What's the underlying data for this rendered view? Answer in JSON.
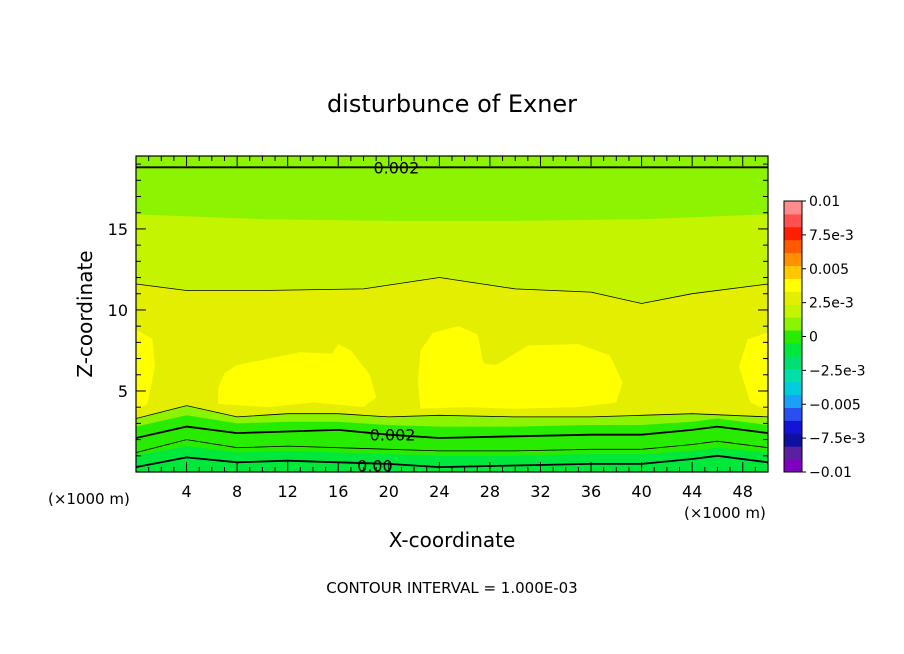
{
  "chart_data": {
    "type": "contour",
    "title": "disturbunce of Exner",
    "xlabel": "X-coordinate",
    "ylabel": "Z-coordinate",
    "x_unit_left": "(×1000 m)",
    "x_unit_right": "(×1000 m)",
    "footer": "CONTOUR INTERVAL = 1.000E-03",
    "xlim": [
      0,
      50
    ],
    "ylim": [
      0,
      19.5
    ],
    "xticks": [
      4,
      8,
      12,
      16,
      20,
      24,
      28,
      32,
      36,
      40,
      44,
      48
    ],
    "yticks": [
      5,
      10,
      15
    ],
    "colorbar": {
      "range": [
        -0.01,
        0.01
      ],
      "labels": [
        {
          "value": 0.01,
          "text": "0.01"
        },
        {
          "value": 0.0075,
          "text": "7.5e-3"
        },
        {
          "value": 0.005,
          "text": "0.005"
        },
        {
          "value": 0.0025,
          "text": "2.5e-3"
        },
        {
          "value": 0,
          "text": "0"
        },
        {
          "value": -0.0025,
          "text": "−2.5e-3"
        },
        {
          "value": -0.005,
          "text": "−0.005"
        },
        {
          "value": -0.0075,
          "text": "−7.5e-3"
        },
        {
          "value": -0.01,
          "text": "−0.01"
        }
      ],
      "colors": [
        "#8000c0",
        "#5a20a0",
        "#1010a0",
        "#1414d8",
        "#2a4ef0",
        "#1aa0f8",
        "#00ccdc",
        "#00e0a8",
        "#00e070",
        "#00e83c",
        "#28ec00",
        "#8cf400",
        "#c4f400",
        "#e4ee00",
        "#ffff00",
        "#ffc800",
        "#ff9000",
        "#ff5a00",
        "#ff1e00",
        "#ff5050",
        "#ff8c8c"
      ]
    },
    "contour_labels": [
      {
        "x": 20.6,
        "y": 18.8,
        "text": "0.002"
      },
      {
        "x": 20.3,
        "y": 2.3,
        "text": "0.002"
      },
      {
        "x": 18.9,
        "y": 0.4,
        "text": "0.00"
      }
    ],
    "contour_lines": [
      {
        "weight": "thick",
        "points": [
          [
            0,
            18.8
          ],
          [
            10,
            18.8
          ],
          [
            20,
            18.8
          ],
          [
            30,
            18.8
          ],
          [
            40,
            18.8
          ],
          [
            50,
            18.8
          ]
        ]
      },
      {
        "weight": "thin",
        "points": [
          [
            0,
            11.6
          ],
          [
            4,
            11.2
          ],
          [
            10,
            11.2
          ],
          [
            18,
            11.3
          ],
          [
            24,
            12.0
          ],
          [
            30,
            11.3
          ],
          [
            36,
            11.1
          ],
          [
            40,
            10.4
          ],
          [
            44,
            11.0
          ],
          [
            50,
            11.6
          ]
        ]
      },
      {
        "weight": "thin",
        "points": [
          [
            0,
            3.3
          ],
          [
            4,
            4.1
          ],
          [
            8,
            3.4
          ],
          [
            12,
            3.6
          ],
          [
            16,
            3.6
          ],
          [
            20,
            3.4
          ],
          [
            24,
            3.5
          ],
          [
            30,
            3.4
          ],
          [
            36,
            3.4
          ],
          [
            40,
            3.5
          ],
          [
            44,
            3.6
          ],
          [
            50,
            3.4
          ]
        ]
      },
      {
        "weight": "thick",
        "points": [
          [
            0,
            2.1
          ],
          [
            4,
            2.8
          ],
          [
            8,
            2.4
          ],
          [
            12,
            2.5
          ],
          [
            16,
            2.6
          ],
          [
            20,
            2.3
          ],
          [
            24,
            2.1
          ],
          [
            30,
            2.2
          ],
          [
            36,
            2.3
          ],
          [
            40,
            2.3
          ],
          [
            44,
            2.6
          ],
          [
            46,
            2.8
          ],
          [
            50,
            2.4
          ]
        ]
      },
      {
        "weight": "thin",
        "points": [
          [
            0,
            1.2
          ],
          [
            4,
            2.0
          ],
          [
            8,
            1.5
          ],
          [
            12,
            1.6
          ],
          [
            16,
            1.5
          ],
          [
            20,
            1.4
          ],
          [
            24,
            1.3
          ],
          [
            30,
            1.3
          ],
          [
            36,
            1.4
          ],
          [
            40,
            1.4
          ],
          [
            44,
            1.7
          ],
          [
            46,
            1.9
          ],
          [
            50,
            1.5
          ]
        ]
      },
      {
        "weight": "thick",
        "points": [
          [
            0,
            0.3
          ],
          [
            4,
            0.9
          ],
          [
            8,
            0.6
          ],
          [
            12,
            0.7
          ],
          [
            16,
            0.6
          ],
          [
            20,
            0.5
          ],
          [
            24,
            0.3
          ],
          [
            30,
            0.4
          ],
          [
            36,
            0.5
          ],
          [
            40,
            0.5
          ],
          [
            44,
            0.8
          ],
          [
            46,
            1.0
          ],
          [
            50,
            0.6
          ]
        ]
      }
    ],
    "fill_bands": [
      {
        "color": "#00e83c",
        "top": [
          [
            0,
            1.0
          ],
          [
            4,
            1.6
          ],
          [
            8,
            1.2
          ],
          [
            12,
            1.3
          ],
          [
            16,
            1.2
          ],
          [
            20,
            1.1
          ],
          [
            24,
            1.0
          ],
          [
            30,
            1.0
          ],
          [
            36,
            1.1
          ],
          [
            40,
            1.1
          ],
          [
            44,
            1.3
          ],
          [
            46,
            1.5
          ],
          [
            50,
            1.2
          ]
        ]
      },
      {
        "color": "#28ec00",
        "top": [
          [
            0,
            2.8
          ],
          [
            4,
            3.5
          ],
          [
            8,
            3.0
          ],
          [
            12,
            3.1
          ],
          [
            16,
            3.1
          ],
          [
            20,
            2.9
          ],
          [
            24,
            2.8
          ],
          [
            30,
            2.8
          ],
          [
            36,
            2.9
          ],
          [
            40,
            2.9
          ],
          [
            44,
            3.1
          ],
          [
            46,
            3.3
          ],
          [
            50,
            2.9
          ]
        ]
      },
      {
        "color": "#8cf400",
        "top": [
          [
            0,
            3.3
          ],
          [
            4,
            4.1
          ],
          [
            8,
            3.4
          ],
          [
            12,
            3.6
          ],
          [
            16,
            3.6
          ],
          [
            20,
            3.4
          ],
          [
            24,
            3.5
          ],
          [
            30,
            3.4
          ],
          [
            36,
            3.4
          ],
          [
            40,
            3.5
          ],
          [
            44,
            3.6
          ],
          [
            50,
            3.4
          ]
        ]
      },
      {
        "color": "#e4ee00",
        "top": [
          [
            0,
            11.6
          ],
          [
            4,
            11.2
          ],
          [
            10,
            11.2
          ],
          [
            18,
            11.3
          ],
          [
            24,
            12.0
          ],
          [
            30,
            11.3
          ],
          [
            36,
            11.1
          ],
          [
            40,
            10.4
          ],
          [
            44,
            11.0
          ],
          [
            50,
            11.6
          ]
        ]
      },
      {
        "color": "#c4f400",
        "top": [
          [
            0,
            15.9
          ],
          [
            10,
            15.6
          ],
          [
            20,
            15.5
          ],
          [
            30,
            15.5
          ],
          [
            40,
            15.6
          ],
          [
            50,
            15.9
          ]
        ]
      },
      {
        "color": "#8cf400",
        "top": [
          [
            0,
            19.5
          ],
          [
            50,
            19.5
          ]
        ]
      }
    ],
    "high_regions": [
      {
        "color": "#ffff00",
        "points": [
          [
            0,
            3.8
          ],
          [
            0.9,
            4.2
          ],
          [
            1.5,
            6.5
          ],
          [
            1.3,
            8.2
          ],
          [
            0,
            8.8
          ]
        ]
      },
      {
        "color": "#ffff00",
        "points": [
          [
            6.5,
            4.2
          ],
          [
            10.5,
            4.0
          ],
          [
            14,
            4.3
          ],
          [
            18,
            4.0
          ],
          [
            19,
            4.6
          ],
          [
            18.5,
            6.0
          ],
          [
            17,
            7.5
          ],
          [
            16,
            7.9
          ],
          [
            15.5,
            7.3
          ],
          [
            13,
            7.4
          ],
          [
            10.5,
            7.0
          ],
          [
            8,
            6.6
          ],
          [
            7,
            6.1
          ],
          [
            6.5,
            5.2
          ]
        ]
      },
      {
        "color": "#ffff00",
        "points": [
          [
            22.5,
            3.9
          ],
          [
            26,
            4.0
          ],
          [
            30,
            3.9
          ],
          [
            35,
            4.0
          ],
          [
            38,
            4.3
          ],
          [
            38.5,
            5.5
          ],
          [
            37.5,
            7.2
          ],
          [
            35,
            7.9
          ],
          [
            31,
            7.8
          ],
          [
            28.5,
            6.6
          ],
          [
            27.5,
            6.7
          ],
          [
            27,
            8.5
          ],
          [
            25.5,
            9.0
          ],
          [
            23.5,
            8.6
          ],
          [
            22.5,
            7.5
          ],
          [
            22.3,
            5.5
          ]
        ]
      },
      {
        "color": "#ffff00",
        "points": [
          [
            50,
            3.8
          ],
          [
            48.6,
            4.3
          ],
          [
            47.7,
            6.5
          ],
          [
            48.4,
            8.2
          ],
          [
            50,
            8.6
          ]
        ]
      }
    ]
  }
}
